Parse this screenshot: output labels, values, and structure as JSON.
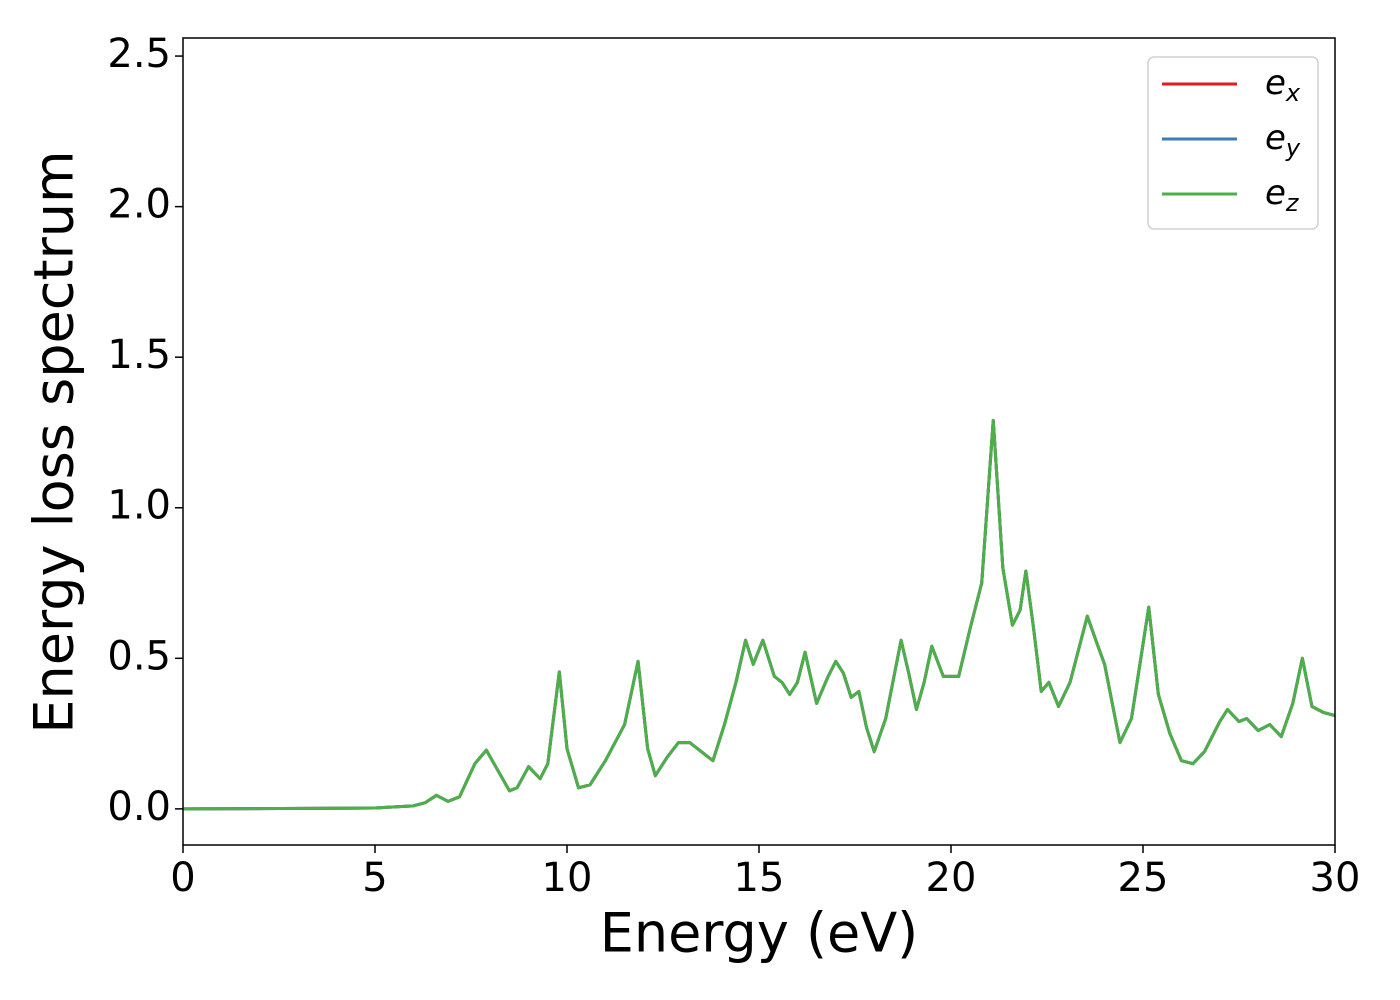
{
  "chart_data": {
    "type": "line",
    "xlabel": "Energy (eV)",
    "ylabel": "Energy loss spectrum",
    "x": [
      0,
      4,
      5,
      6,
      6.3,
      6.6,
      6.9,
      7.2,
      7.6,
      7.9,
      8.1,
      8.5,
      8.7,
      9.0,
      9.3,
      9.5,
      9.8,
      10.0,
      10.3,
      10.6,
      11.0,
      11.5,
      11.85,
      12.1,
      12.3,
      12.6,
      12.9,
      13.2,
      13.4,
      13.8,
      14.1,
      14.4,
      14.65,
      14.85,
      15.1,
      15.4,
      15.6,
      15.8,
      16.0,
      16.2,
      16.5,
      16.8,
      17.0,
      17.2,
      17.4,
      17.6,
      17.8,
      18.0,
      18.3,
      18.7,
      18.9,
      19.1,
      19.3,
      19.5,
      19.8,
      20.2,
      20.5,
      20.8,
      21.1,
      21.35,
      21.6,
      21.8,
      21.95,
      22.15,
      22.35,
      22.55,
      22.8,
      23.1,
      23.55,
      23.8,
      24.0,
      24.4,
      24.7,
      25.15,
      25.4,
      25.7,
      26.0,
      26.3,
      26.6,
      27.0,
      27.2,
      27.5,
      27.7,
      28.0,
      28.3,
      28.6,
      28.9,
      29.15,
      29.4,
      29.7,
      30.0
    ],
    "series": [
      {
        "name": "ex",
        "color": "#e41a1c",
        "values": [
          0,
          0.002,
          0.003,
          0.01,
          0.02,
          0.045,
          0.025,
          0.04,
          0.15,
          0.195,
          0.15,
          0.06,
          0.07,
          0.14,
          0.1,
          0.15,
          0.455,
          0.2,
          0.07,
          0.08,
          0.16,
          0.28,
          0.49,
          0.2,
          0.11,
          0.17,
          0.22,
          0.22,
          0.2,
          0.16,
          0.28,
          0.42,
          0.56,
          0.48,
          0.56,
          0.44,
          0.42,
          0.38,
          0.42,
          0.52,
          0.35,
          0.44,
          0.49,
          0.45,
          0.37,
          0.39,
          0.27,
          0.19,
          0.3,
          0.56,
          0.45,
          0.33,
          0.42,
          0.54,
          0.44,
          0.44,
          0.6,
          0.75,
          1.29,
          0.8,
          0.61,
          0.66,
          0.79,
          0.6,
          0.39,
          0.42,
          0.34,
          0.42,
          0.64,
          0.55,
          0.48,
          0.22,
          0.3,
          0.67,
          0.38,
          0.25,
          0.16,
          0.15,
          0.19,
          0.29,
          0.33,
          0.29,
          0.3,
          0.26,
          0.28,
          0.24,
          0.35,
          0.5,
          0.34,
          0.32,
          0.31
        ]
      },
      {
        "name": "ey",
        "color": "#377eb8",
        "values": [
          0,
          0.002,
          0.003,
          0.01,
          0.02,
          0.045,
          0.025,
          0.04,
          0.15,
          0.195,
          0.15,
          0.06,
          0.07,
          0.14,
          0.1,
          0.15,
          0.455,
          0.2,
          0.07,
          0.08,
          0.16,
          0.28,
          0.49,
          0.2,
          0.11,
          0.17,
          0.22,
          0.22,
          0.2,
          0.16,
          0.28,
          0.42,
          0.56,
          0.48,
          0.56,
          0.44,
          0.42,
          0.38,
          0.42,
          0.52,
          0.35,
          0.44,
          0.49,
          0.45,
          0.37,
          0.39,
          0.27,
          0.19,
          0.3,
          0.56,
          0.45,
          0.33,
          0.42,
          0.54,
          0.44,
          0.44,
          0.6,
          0.75,
          1.29,
          0.8,
          0.61,
          0.66,
          0.79,
          0.6,
          0.39,
          0.42,
          0.34,
          0.42,
          0.64,
          0.55,
          0.48,
          0.22,
          0.3,
          0.67,
          0.38,
          0.25,
          0.16,
          0.15,
          0.19,
          0.29,
          0.33,
          0.29,
          0.3,
          0.26,
          0.28,
          0.24,
          0.35,
          0.5,
          0.34,
          0.32,
          0.31
        ]
      },
      {
        "name": "ez",
        "color": "#4daf4a",
        "values": [
          0,
          0.002,
          0.003,
          0.01,
          0.02,
          0.045,
          0.025,
          0.04,
          0.15,
          0.195,
          0.15,
          0.06,
          0.07,
          0.14,
          0.1,
          0.15,
          0.455,
          0.2,
          0.07,
          0.08,
          0.16,
          0.28,
          0.49,
          0.2,
          0.11,
          0.17,
          0.22,
          0.22,
          0.2,
          0.16,
          0.28,
          0.42,
          0.56,
          0.48,
          0.56,
          0.44,
          0.42,
          0.38,
          0.42,
          0.52,
          0.35,
          0.44,
          0.49,
          0.45,
          0.37,
          0.39,
          0.27,
          0.19,
          0.3,
          0.56,
          0.45,
          0.33,
          0.42,
          0.54,
          0.44,
          0.44,
          0.6,
          0.75,
          1.29,
          0.8,
          0.61,
          0.66,
          0.79,
          0.6,
          0.39,
          0.42,
          0.34,
          0.42,
          0.64,
          0.55,
          0.48,
          0.22,
          0.3,
          0.67,
          0.38,
          0.25,
          0.16,
          0.15,
          0.19,
          0.29,
          0.33,
          0.29,
          0.3,
          0.26,
          0.28,
          0.24,
          0.35,
          0.5,
          0.34,
          0.32,
          0.31
        ]
      }
    ],
    "xlim": [
      0,
      30
    ],
    "xticks": [
      0,
      5,
      10,
      15,
      20,
      25,
      30
    ],
    "ylim": [
      -0.12,
      2.56
    ],
    "yticks": [
      {
        "value": 0,
        "label": "0.0"
      },
      0.5,
      {
        "value": 1,
        "label": "1.0"
      },
      1.5,
      {
        "value": 2,
        "label": "2.0"
      },
      2.5
    ],
    "legend": "upper right"
  }
}
